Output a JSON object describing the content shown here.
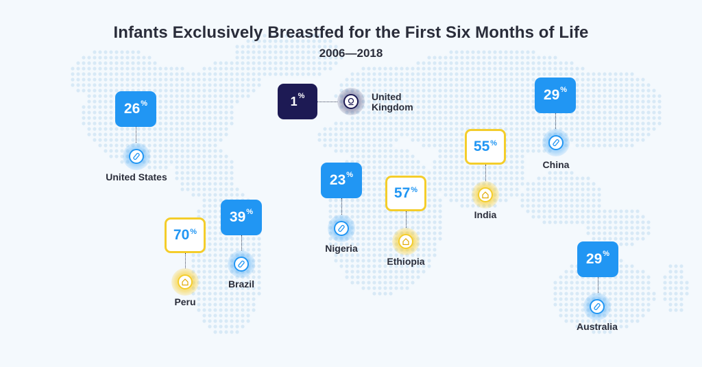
{
  "title": "Infants Exclusively Breastfed for the First Six Months of Life",
  "subtitle": "2006—2018",
  "percent_sign": "%",
  "colors": {
    "blue": "#2196f3",
    "navy": "#1d1a54",
    "yellow": "#f4cd2a",
    "text": "#2a2d3a",
    "map_dots": "#d8e9f6"
  },
  "countries": [
    {
      "name": "United States",
      "value": "26",
      "box_style": "blue",
      "icon": "bottle-icon"
    },
    {
      "name": "United Kingdom",
      "name_line1": "United",
      "name_line2": "Kingdom",
      "value": "1",
      "box_style": "navy",
      "icon": "baby-icon"
    },
    {
      "name": "China",
      "value": "29",
      "box_style": "blue",
      "icon": "bottle-icon"
    },
    {
      "name": "India",
      "value": "55",
      "box_style": "yellow",
      "icon": "house-icon"
    },
    {
      "name": "Nigeria",
      "value": "23",
      "box_style": "blue",
      "icon": "bottle-icon"
    },
    {
      "name": "Ethiopia",
      "value": "57",
      "box_style": "yellow",
      "icon": "house-icon"
    },
    {
      "name": "Brazil",
      "value": "39",
      "box_style": "blue",
      "icon": "bottle-icon"
    },
    {
      "name": "Peru",
      "value": "70",
      "box_style": "yellow",
      "icon": "house-icon"
    },
    {
      "name": "Australia",
      "value": "29",
      "box_style": "blue",
      "icon": "bottle-icon"
    }
  ]
}
